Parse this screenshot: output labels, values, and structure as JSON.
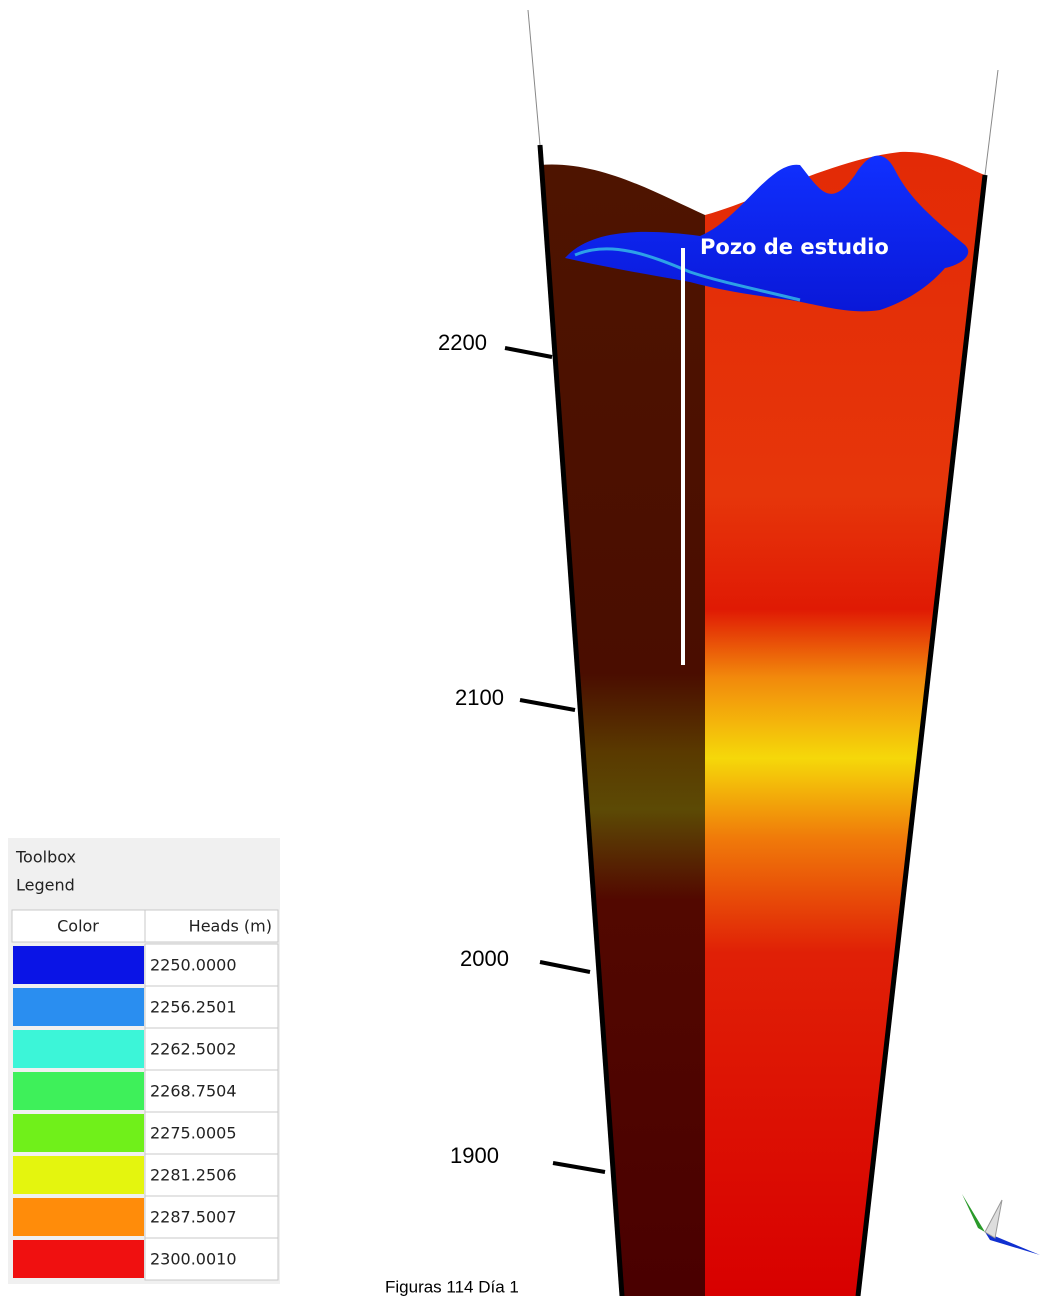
{
  "figure": {
    "depth_labels": [
      2200,
      2100,
      2000,
      1900
    ],
    "annotation": "Pozo de estudio",
    "caption": "Figuras 114 Día 1"
  },
  "legend_panel": {
    "toolbox_title": "Toolbox",
    "legend_title": "Legend",
    "columns": [
      "Color",
      "Heads (m)"
    ],
    "rows": [
      {
        "color": "#0a14e6",
        "value": "2250.0000"
      },
      {
        "color": "#2a8ef0",
        "value": "2256.2501"
      },
      {
        "color": "#3cf5d8",
        "value": "2262.5002"
      },
      {
        "color": "#3ef05a",
        "value": "2268.7504"
      },
      {
        "color": "#70f01a",
        "value": "2275.0005"
      },
      {
        "color": "#e4f50e",
        "value": "2281.2506"
      },
      {
        "color": "#ff8c0a",
        "value": "2287.5007"
      },
      {
        "color": "#f01010",
        "value": "2300.0010"
      }
    ]
  }
}
